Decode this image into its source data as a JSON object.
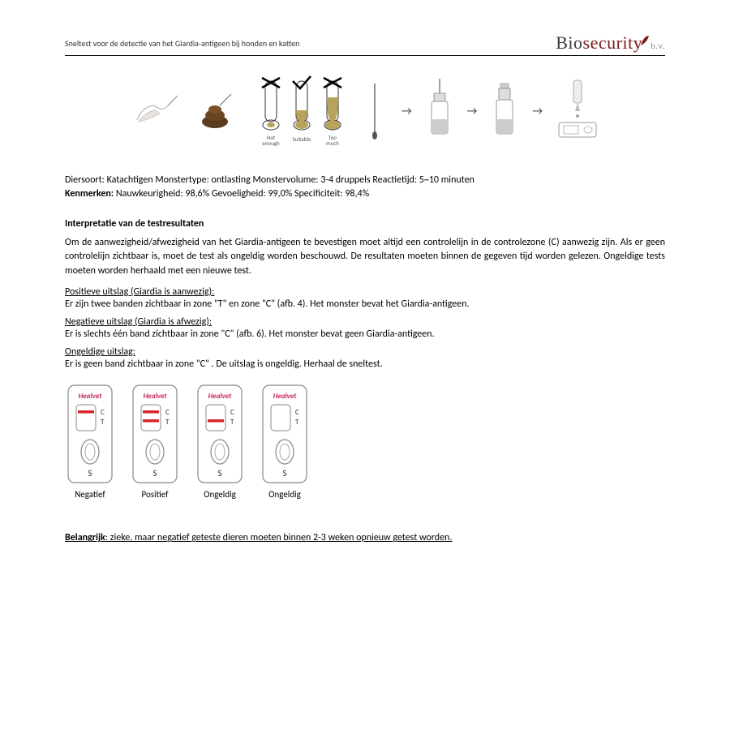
{
  "header": {
    "title": "Sneltest voor de detectie van het Giardia-antigeen bij honden en katten",
    "logo_bio": "Bio",
    "logo_sec": "security",
    "logo_bv": "b.v."
  },
  "tubes": {
    "label1": "Not enough",
    "label2": "Suitable",
    "label3": "Too much"
  },
  "info": {
    "line1": "Diersoort: Katachtigen Monstertype: ontlasting Monstervolume: 3-4 druppels Reactietijd: 5~10 minuten",
    "line2_label": "Kenmerken:",
    "line2_rest": " Nauwkeurigheid: 98,6% Gevoeligheid: 99,0% Specificiteit: 98,4%"
  },
  "interpretation": {
    "title": "Interpretatie van de testresultaten",
    "intro": "Om de aanwezigheid/afwezigheid van het Giardia-antigeen te bevestigen moet altijd een controlelijn in de controlezone (C) aanwezig zijn. Als er geen controlelijn zichtbaar is, moet de test als ongeldig worden beschouwd. De resultaten moeten binnen de gegeven tijd worden gelezen. Ongeldige tests moeten worden herhaald met een nieuwe test.",
    "positive_h": "Positieve uitslag (Giardia is aanwezig):",
    "positive_t": "Er zijn twee banden zichtbaar in zone \"T\" en zone \"C\" (afb. 4). Het monster bevat het Giardia-antigeen.",
    "negative_h": "Negatieve uitslag (Giardia is afwezig):",
    "negative_t": "Er is slechts één band zichtbaar in zone \"C\" (afb. 6). Het monster bevat geen Giardia-antigeen.",
    "invalid_h": "Ongeldige uitslag:",
    "invalid_t": "Er is geen band zichtbaar in zone \"C\" . De uitslag is ongeldig. Herhaal de sneltest."
  },
  "cassettes": {
    "brand": "Healvet",
    "brand_color": "#c0285a",
    "line_color": "#d8232a",
    "items": [
      {
        "label": "Negatief",
        "c": true,
        "t": false
      },
      {
        "label": "Positief",
        "c": true,
        "t": true
      },
      {
        "label": "Ongeldig",
        "c": false,
        "t": true
      },
      {
        "label": "Ongeldig",
        "c": false,
        "t": false
      }
    ]
  },
  "important": {
    "label": "Belangrijk",
    "text": ": zieke, maar negatief geteste dieren moeten binnen 2-3 weken opnieuw getest worden."
  },
  "colors": {
    "sample_fill": "#b8a35a",
    "tube_stroke": "#333333"
  }
}
